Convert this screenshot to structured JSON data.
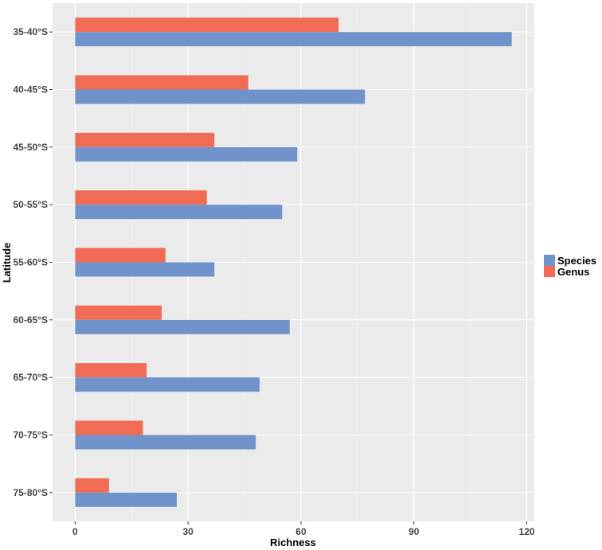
{
  "chart_data": {
    "type": "bar",
    "orientation": "horizontal",
    "xlabel": "Richness",
    "ylabel": "Latitude",
    "xlim": [
      -6,
      122
    ],
    "xticks": [
      0,
      30,
      60,
      90,
      120
    ],
    "grid": true,
    "legend_position": "right",
    "categories": [
      "35-40°S",
      "40-45°S",
      "45-50°S",
      "50-55°S",
      "55-60°S",
      "60-65°S",
      "65-70°S",
      "70-75°S",
      "75-80°S"
    ],
    "series": [
      {
        "name": "Species",
        "color": "#7093CC",
        "values": [
          116,
          77,
          59,
          55,
          37,
          57,
          49,
          48,
          27
        ]
      },
      {
        "name": "Genus",
        "color": "#F06C54",
        "values": [
          70,
          46,
          37,
          35,
          24,
          23,
          19,
          18,
          9
        ]
      }
    ]
  }
}
